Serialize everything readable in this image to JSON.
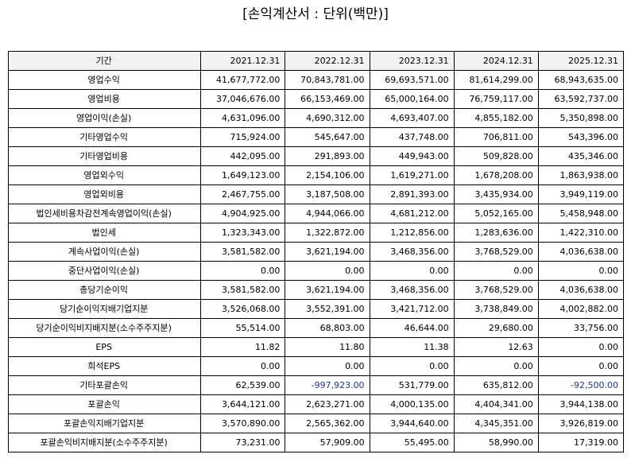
{
  "title": "[손익계산서 : 단위(백만)]",
  "colors": {
    "header_bg": "#f2f2f2",
    "border": "#000000",
    "negative_text": "#1f35a8"
  },
  "table": {
    "header": {
      "label": "기간",
      "years": [
        "2021.12.31",
        "2022.12.31",
        "2023.12.31",
        "2024.12.31",
        "2025.12.31"
      ]
    },
    "rows": [
      {
        "label": "영업수익",
        "values": [
          "41,677,772.00",
          "70,843,781.00",
          "69,693,571.00",
          "81,614,299.00",
          "68,943,635.00"
        ]
      },
      {
        "label": "영업비용",
        "values": [
          "37,046,676.00",
          "66,153,469.00",
          "65,000,164.00",
          "76,759,117.00",
          "63,592,737.00"
        ]
      },
      {
        "label": "영업이익(손실)",
        "values": [
          "4,631,096.00",
          "4,690,312.00",
          "4,693,407.00",
          "4,855,182.00",
          "5,350,898.00"
        ]
      },
      {
        "label": "기타영업수익",
        "values": [
          "715,924.00",
          "545,647.00",
          "437,748.00",
          "706,811.00",
          "543,396.00"
        ]
      },
      {
        "label": "기타영업비용",
        "values": [
          "442,095.00",
          "291,893.00",
          "449,943.00",
          "509,828.00",
          "435,346.00"
        ]
      },
      {
        "label": "영업외수익",
        "values": [
          "1,649,123.00",
          "2,154,106.00",
          "1,619,271.00",
          "1,678,208.00",
          "1,863,938.00"
        ]
      },
      {
        "label": "영업외비용",
        "values": [
          "2,467,755.00",
          "3,187,508.00",
          "2,891,393.00",
          "3,435,934.00",
          "3,949,119.00"
        ]
      },
      {
        "label": "법인세비용차감전계속영업이익(손실)",
        "values": [
          "4,904,925.00",
          "4,944,066.00",
          "4,681,212.00",
          "5,052,165.00",
          "5,458,948.00"
        ]
      },
      {
        "label": "법인세",
        "values": [
          "1,323,343.00",
          "1,322,872.00",
          "1,212,856.00",
          "1,283,636.00",
          "1,422,310.00"
        ]
      },
      {
        "label": "계속사업이익(손실)",
        "values": [
          "3,581,582.00",
          "3,621,194.00",
          "3,468,356.00",
          "3,768,529.00",
          "4,036,638.00"
        ]
      },
      {
        "label": "중단사업이익(손실)",
        "values": [
          "0.00",
          "0.00",
          "0.00",
          "0.00",
          "0.00"
        ]
      },
      {
        "label": "총당기순이익",
        "values": [
          "3,581,582.00",
          "3,621,194.00",
          "3,468,356.00",
          "3,768,529.00",
          "4,036,638.00"
        ]
      },
      {
        "label": "당기순이익지배기업지분",
        "values": [
          "3,526,068.00",
          "3,552,391.00",
          "3,421,712.00",
          "3,738,849.00",
          "4,002,882.00"
        ]
      },
      {
        "label": "당기순이익비지배지분(소수주주지분)",
        "values": [
          "55,514.00",
          "68,803.00",
          "46,644.00",
          "29,680.00",
          "33,756.00"
        ]
      },
      {
        "label": "EPS",
        "values": [
          "11.82",
          "11.80",
          "11.38",
          "12.63",
          "0.00"
        ]
      },
      {
        "label": "희석EPS",
        "values": [
          "0.00",
          "0.00",
          "0.00",
          "0.00",
          "0.00"
        ]
      },
      {
        "label": "기타포괄손익",
        "values": [
          "62,539.00",
          "-997,923.00",
          "531,779.00",
          "635,812.00",
          "-92,500.00"
        ]
      },
      {
        "label": "포괄손익",
        "values": [
          "3,644,121.00",
          "2,623,271.00",
          "4,000,135.00",
          "4,404,341.00",
          "3,944,138.00"
        ]
      },
      {
        "label": "포괄손익지배기업지분",
        "values": [
          "3,570,890.00",
          "2,565,362.00",
          "3,944,640.00",
          "4,345,351.00",
          "3,926,819.00"
        ]
      },
      {
        "label": "포괄손익비지배지분(소수주주지분)",
        "values": [
          "73,231.00",
          "57,909.00",
          "55,495.00",
          "58,990.00",
          "17,319.00"
        ]
      }
    ]
  }
}
